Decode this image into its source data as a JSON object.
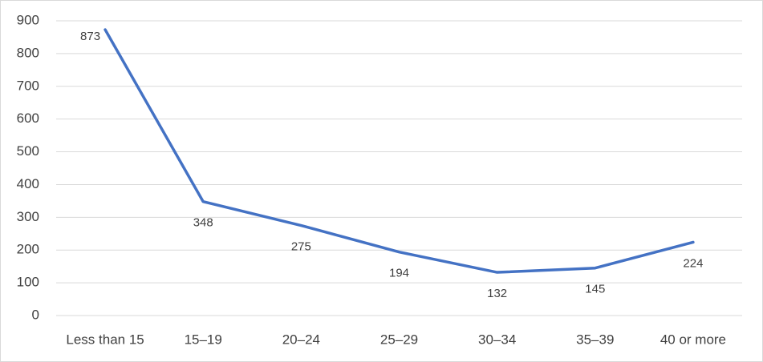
{
  "chart_data": {
    "type": "line",
    "categories": [
      "Less than 15",
      "15–19",
      "20–24",
      "25–29",
      "30–34",
      "35–39",
      "40 or more"
    ],
    "values": [
      873,
      348,
      275,
      194,
      132,
      145,
      224
    ],
    "color": "#4472c4",
    "ylim": [
      0,
      900
    ],
    "yticks": [
      0,
      100,
      200,
      300,
      400,
      500,
      600,
      700,
      800,
      900
    ],
    "grid": true
  }
}
